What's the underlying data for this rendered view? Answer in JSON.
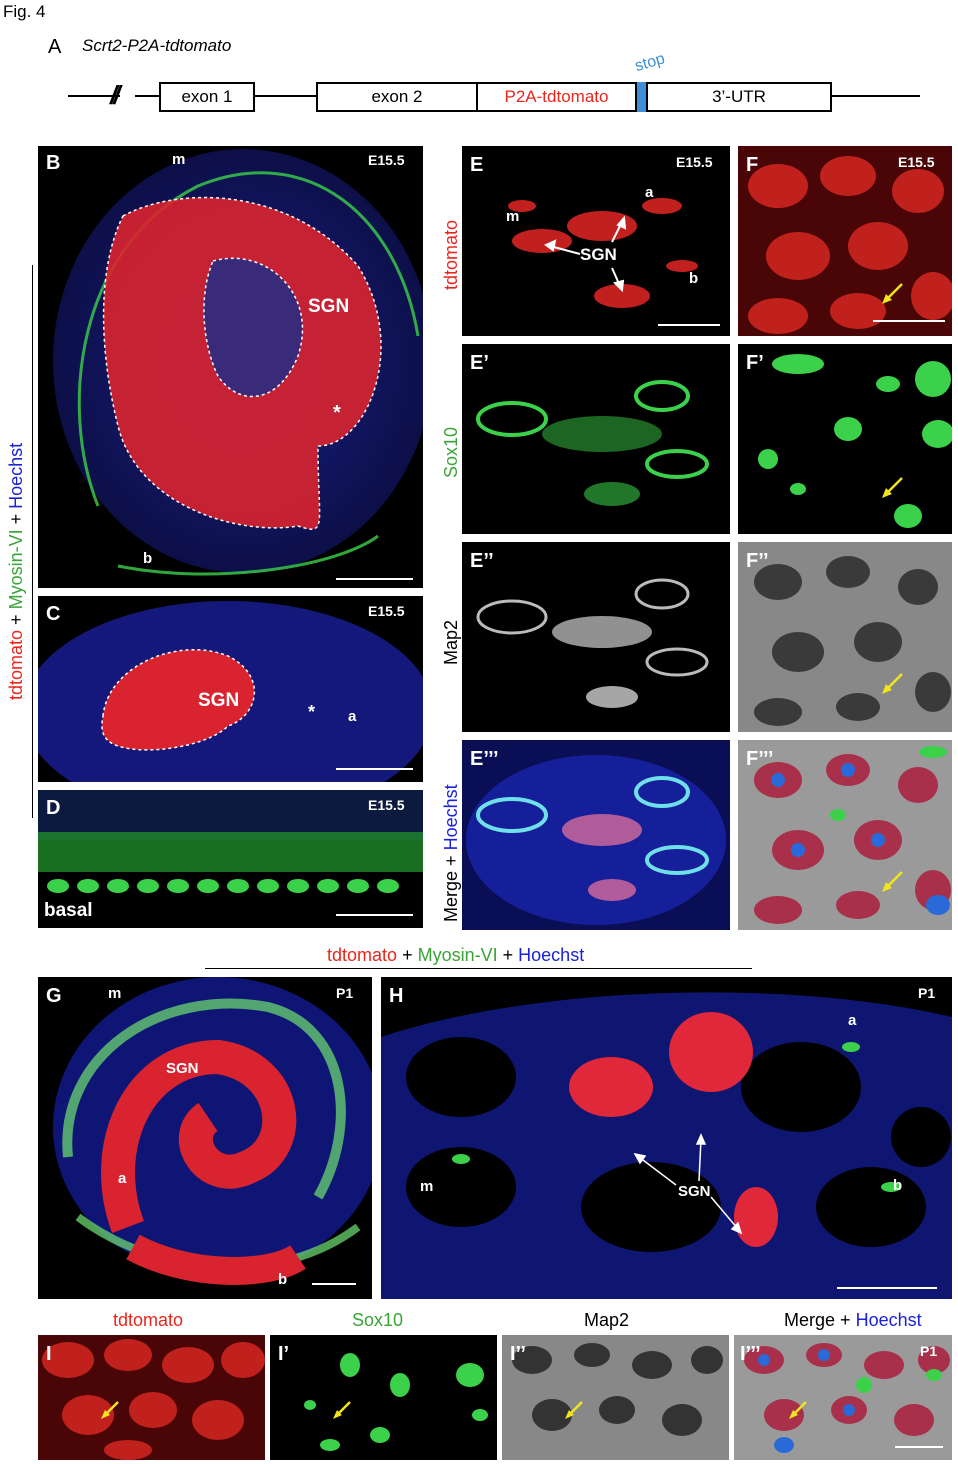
{
  "figure": {
    "label": "Fig. 4"
  },
  "panel_a": {
    "letter": "A",
    "title": "Scrt2-P2A-tdtomato",
    "boxes": {
      "exon1": "exon 1",
      "exon2": "exon 2",
      "p2a": "P2A-tdtomato",
      "utr": "3’-UTR"
    },
    "stop_label": "stop",
    "break_mark": "//"
  },
  "side_label": {
    "tdtomato": "tdtomato",
    "myosin": "Myosin-VI",
    "hoechst": "Hoechst",
    "plus": "+"
  },
  "panels": {
    "B": {
      "letter": "B",
      "stage": "E15.5",
      "m": "m",
      "b": "b",
      "sgn": "SGN",
      "star": "*"
    },
    "C": {
      "letter": "C",
      "stage": "E15.5",
      "sgn": "SGN",
      "star": "*",
      "a": "a"
    },
    "D": {
      "letter": "D",
      "stage": "E15.5",
      "basal": "basal"
    },
    "E": {
      "letter": "E",
      "stage": "E15.5",
      "m": "m",
      "a": "a",
      "b": "b",
      "sgn": "SGN",
      "row_label": "tdtomato"
    },
    "E1": {
      "letter": "E’",
      "row_label": "Sox10"
    },
    "E2": {
      "letter": "E’’",
      "row_label": "Map2"
    },
    "E3": {
      "letter": "E’’’",
      "row_label_merge": "Merge",
      "row_label_hoechst": "Hoechst",
      "plus": "+"
    },
    "F": {
      "letter": "F",
      "stage": "E15.5"
    },
    "F1": {
      "letter": "F’"
    },
    "F2": {
      "letter": "F’’"
    },
    "F3": {
      "letter": "F’’’"
    },
    "G": {
      "letter": "G",
      "stage": "P1",
      "m": "m",
      "sgn": "SGN",
      "a": "a",
      "b": "b"
    },
    "H": {
      "letter": "H",
      "stage": "P1",
      "a": "a",
      "m": "m",
      "b": "b",
      "sgn": "SGN"
    },
    "I": {
      "letter": "I",
      "header": "tdtomato"
    },
    "I1": {
      "letter": "I’",
      "header": "Sox10"
    },
    "I2": {
      "letter": "I’’",
      "header": "Map2"
    },
    "I3": {
      "letter": "I’’’",
      "stage": "P1",
      "header_merge": "Merge",
      "header_hoechst": "Hoechst",
      "plus": "+"
    }
  },
  "gh_header": {
    "tdtomato": "tdtomato",
    "myosin": "Myosin-VI",
    "hoechst": "Hoechst",
    "plus": "+"
  },
  "colors": {
    "red": "#e8261d",
    "green": "#3aa336",
    "blue": "#1a22d8",
    "stop_blue": "#3d8fd6",
    "arrow_yellow": "#f2e51d"
  }
}
